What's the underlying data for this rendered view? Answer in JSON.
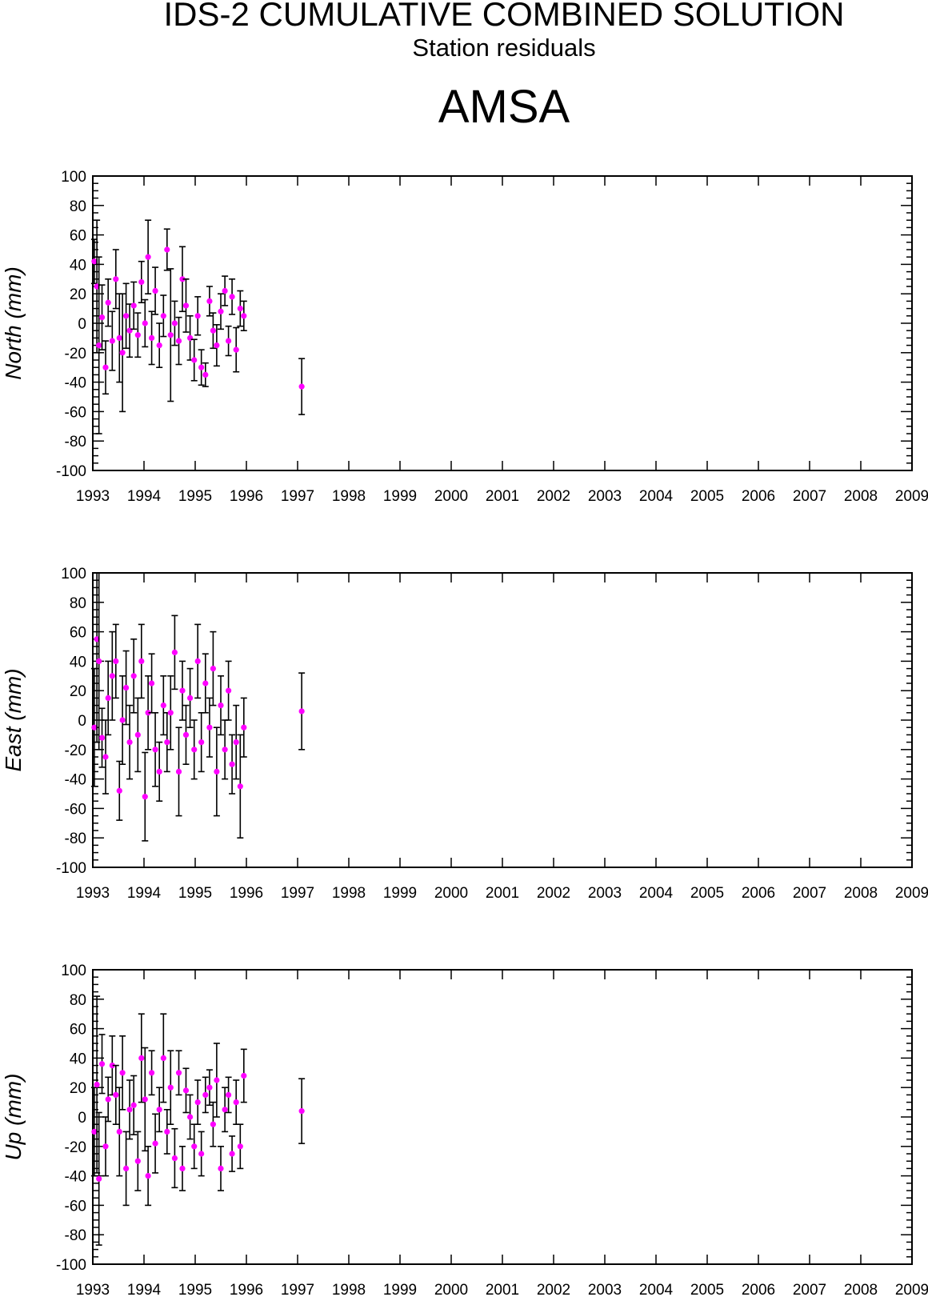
{
  "header": {
    "title": "IDS-2 CUMULATIVE COMBINED SOLUTION",
    "subtitle": "Station residuals",
    "station": "AMSA"
  },
  "colors": {
    "points": "#ff00ff",
    "errorbars": "#000000",
    "axes": "#000000"
  },
  "chart_data": [
    {
      "type": "scatter",
      "ylabel": "North (mm)",
      "ylim": [
        -100,
        100
      ],
      "xlim": [
        1993,
        2009
      ],
      "xticks": [
        "1993",
        "1994",
        "1995",
        "1996",
        "1997",
        "1998",
        "1999",
        "2000",
        "2001",
        "2002",
        "2003",
        "2004",
        "2005",
        "2006",
        "2007",
        "2008",
        "2009"
      ],
      "yticks": [
        "100",
        "80",
        "60",
        "40",
        "20",
        "0",
        "-20",
        "-40",
        "-60",
        "-80",
        "-100"
      ],
      "series": [
        {
          "x": [
            1993.03,
            1993.08,
            1993.12,
            1993.18,
            1993.25,
            1993.3,
            1993.38,
            1993.45,
            1993.52,
            1993.58,
            1993.65,
            1993.72,
            1993.8,
            1993.88,
            1993.95,
            1994.02,
            1994.08,
            1994.15,
            1994.22,
            1994.3,
            1994.38,
            1994.45,
            1994.52,
            1994.6,
            1994.68,
            1994.75,
            1994.82,
            1994.9,
            1994.98,
            1995.05,
            1995.12,
            1995.2,
            1995.28,
            1995.35,
            1995.42,
            1995.5,
            1995.58,
            1995.65,
            1995.72,
            1995.8,
            1995.88,
            1995.95,
            1997.08
          ],
          "y": [
            42,
            25,
            -15,
            4,
            -30,
            14,
            -12,
            30,
            -10,
            -20,
            5,
            -5,
            12,
            -8,
            28,
            0,
            45,
            -10,
            22,
            -15,
            5,
            50,
            -8,
            0,
            -12,
            30,
            12,
            -10,
            -25,
            5,
            -30,
            -35,
            15,
            -5,
            -15,
            8,
            22,
            -12,
            18,
            -18,
            10,
            5,
            -43
          ],
          "err": [
            15,
            45,
            60,
            22,
            18,
            16,
            20,
            20,
            30,
            40,
            22,
            18,
            16,
            15,
            14,
            16,
            25,
            18,
            16,
            15,
            14,
            14,
            45,
            15,
            16,
            22,
            18,
            15,
            14,
            13,
            12,
            8,
            10,
            12,
            14,
            12,
            10,
            10,
            12,
            15,
            12,
            10,
            19
          ]
        }
      ]
    },
    {
      "type": "scatter",
      "ylabel": "East (mm)",
      "ylim": [
        -100,
        100
      ],
      "xlim": [
        1993,
        2009
      ],
      "xticks": [
        "1993",
        "1994",
        "1995",
        "1996",
        "1997",
        "1998",
        "1999",
        "2000",
        "2001",
        "2002",
        "2003",
        "2004",
        "2005",
        "2006",
        "2007",
        "2008",
        "2009"
      ],
      "yticks": [
        "100",
        "80",
        "60",
        "40",
        "20",
        "0",
        "-20",
        "-40",
        "-60",
        "-80",
        "-100"
      ],
      "series": [
        {
          "x": [
            1993.03,
            1993.08,
            1993.12,
            1993.18,
            1993.25,
            1993.3,
            1993.38,
            1993.45,
            1993.52,
            1993.58,
            1993.65,
            1993.72,
            1993.8,
            1993.88,
            1993.95,
            1994.02,
            1994.08,
            1994.15,
            1994.22,
            1994.3,
            1994.38,
            1994.45,
            1994.52,
            1994.6,
            1994.68,
            1994.75,
            1994.82,
            1994.9,
            1994.98,
            1995.05,
            1995.12,
            1995.2,
            1995.28,
            1995.35,
            1995.42,
            1995.5,
            1995.58,
            1995.65,
            1995.72,
            1995.8,
            1995.88,
            1995.95,
            1997.08
          ],
          "y": [
            -5,
            55,
            40,
            -12,
            -25,
            15,
            30,
            40,
            -48,
            0,
            22,
            -15,
            30,
            -10,
            40,
            -52,
            5,
            25,
            -20,
            -35,
            10,
            -15,
            5,
            46,
            -35,
            20,
            -10,
            15,
            -20,
            40,
            -15,
            25,
            -5,
            35,
            -35,
            10,
            -20,
            20,
            -30,
            -15,
            -45,
            -5,
            6
          ],
          "err": [
            40,
            70,
            60,
            20,
            25,
            25,
            30,
            25,
            20,
            30,
            25,
            25,
            25,
            25,
            25,
            30,
            25,
            20,
            25,
            20,
            20,
            20,
            25,
            25,
            30,
            20,
            20,
            20,
            20,
            25,
            20,
            20,
            20,
            25,
            30,
            20,
            20,
            20,
            20,
            25,
            35,
            20,
            26
          ]
        }
      ]
    },
    {
      "type": "scatter",
      "ylabel": "Up (mm)",
      "ylim": [
        -100,
        100
      ],
      "xlim": [
        1993,
        2009
      ],
      "xticks": [
        "1993",
        "1994",
        "1995",
        "1996",
        "1997",
        "1998",
        "1999",
        "2000",
        "2001",
        "2002",
        "2003",
        "2004",
        "2005",
        "2006",
        "2007",
        "2008",
        "2009"
      ],
      "yticks": [
        "100",
        "80",
        "60",
        "40",
        "20",
        "0",
        "-20",
        "-40",
        "-60",
        "-80",
        "-100"
      ],
      "series": [
        {
          "x": [
            1993.03,
            1993.08,
            1993.12,
            1993.18,
            1993.25,
            1993.3,
            1993.38,
            1993.45,
            1993.52,
            1993.58,
            1993.65,
            1993.72,
            1993.8,
            1993.88,
            1993.95,
            1994.02,
            1994.08,
            1994.15,
            1994.22,
            1994.3,
            1994.38,
            1994.45,
            1994.52,
            1994.6,
            1994.68,
            1994.75,
            1994.82,
            1994.9,
            1994.98,
            1995.05,
            1995.12,
            1995.2,
            1995.28,
            1995.35,
            1995.42,
            1995.5,
            1995.58,
            1995.65,
            1995.72,
            1995.8,
            1995.88,
            1995.95,
            1997.08
          ],
          "y": [
            -10,
            22,
            -42,
            36,
            -20,
            12,
            35,
            15,
            -10,
            30,
            -35,
            5,
            8,
            -30,
            40,
            12,
            -40,
            30,
            -18,
            5,
            40,
            -10,
            20,
            -28,
            30,
            -35,
            18,
            0,
            -20,
            10,
            -25,
            15,
            20,
            -5,
            25,
            -35,
            5,
            15,
            -25,
            10,
            -20,
            28,
            4
          ],
          "err": [
            30,
            60,
            45,
            20,
            20,
            15,
            20,
            20,
            30,
            25,
            25,
            20,
            20,
            20,
            30,
            35,
            20,
            15,
            20,
            15,
            30,
            15,
            25,
            20,
            15,
            15,
            15,
            15,
            15,
            15,
            15,
            12,
            12,
            15,
            25,
            15,
            15,
            12,
            12,
            15,
            15,
            18,
            22
          ]
        }
      ]
    }
  ]
}
